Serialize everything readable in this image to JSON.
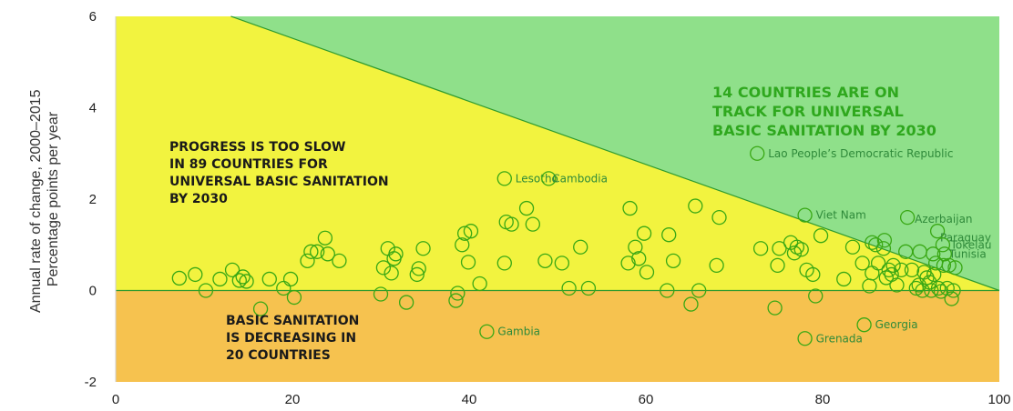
{
  "chart_data": {
    "type": "scatter",
    "xlim": [
      0,
      100
    ],
    "ylim": [
      -2,
      6
    ],
    "x_ticks": [
      "0",
      "20",
      "40",
      "60",
      "80",
      "100"
    ],
    "y_ticks": [
      "-2",
      "0",
      "2",
      "4",
      "6"
    ],
    "ylabel_lines": [
      "Annual rate of change, 2000–2015",
      "Percentage points per year"
    ],
    "colors": {
      "on_track": "#8fe08a",
      "too_slow": "#f2f33f",
      "decreasing": "#f6c24f",
      "marker": "#39a814",
      "green_text": "#2fa81e",
      "label_text": "#2f8a3a",
      "dark_text": "#1a1a1a"
    },
    "annotations": {
      "on_track": [
        "14 COUNTRIES ARE ON",
        "TRACK FOR UNIVERSAL",
        "BASIC SANITATION BY 2030"
      ],
      "too_slow": [
        "PROGRESS IS TOO SLOW",
        "IN 89 COUNTRIES FOR",
        "UNIVERSAL BASIC SANITATION",
        "BY 2030"
      ],
      "decreasing": [
        "BASIC SANITATION",
        "IS DECREASING IN",
        "20 COUNTRIES"
      ]
    },
    "labeled_points": [
      {
        "label": "Lao People’s Democratic Republic",
        "x": 72.6,
        "y": 3.0
      },
      {
        "label": "Lesotho",
        "x": 44.0,
        "y": 2.45
      },
      {
        "label": "Cambodia",
        "x": 49.0,
        "y": 2.45
      },
      {
        "label": "Viet Nam",
        "x": 78.0,
        "y": 1.65
      },
      {
        "label": "Azerbaijan",
        "x": 89.6,
        "y": 1.6
      },
      {
        "label": "Paraguay",
        "x": 93.0,
        "y": 1.3
      },
      {
        "label": "Tokelau",
        "x": 93.6,
        "y": 1.0
      },
      {
        "label": "Tunisia",
        "x": 93.8,
        "y": 0.8
      },
      {
        "label": "Gambia",
        "x": 42.0,
        "y": -0.9
      },
      {
        "label": "Georgia",
        "x": 84.7,
        "y": -0.75
      },
      {
        "label": "Grenada",
        "x": 78.0,
        "y": -1.05
      }
    ],
    "points": [
      [
        7.2,
        0.27
      ],
      [
        9.0,
        0.35
      ],
      [
        10.2,
        0.0
      ],
      [
        11.8,
        0.25
      ],
      [
        13.2,
        0.45
      ],
      [
        14.0,
        0.22
      ],
      [
        14.4,
        0.3
      ],
      [
        14.8,
        0.2
      ],
      [
        16.4,
        -0.4
      ],
      [
        17.4,
        0.25
      ],
      [
        19.0,
        0.05
      ],
      [
        19.8,
        0.25
      ],
      [
        20.2,
        -0.15
      ],
      [
        21.7,
        0.65
      ],
      [
        22.1,
        0.85
      ],
      [
        22.8,
        0.85
      ],
      [
        23.7,
        1.15
      ],
      [
        24.0,
        0.8
      ],
      [
        25.3,
        0.65
      ],
      [
        30.0,
        -0.08
      ],
      [
        30.3,
        0.5
      ],
      [
        30.8,
        0.92
      ],
      [
        31.2,
        0.38
      ],
      [
        31.5,
        0.7
      ],
      [
        31.7,
        0.8
      ],
      [
        32.9,
        -0.26
      ],
      [
        34.1,
        0.35
      ],
      [
        34.3,
        0.48
      ],
      [
        34.8,
        0.92
      ],
      [
        38.5,
        -0.22
      ],
      [
        38.7,
        -0.06
      ],
      [
        39.2,
        1.0
      ],
      [
        39.5,
        1.25
      ],
      [
        39.9,
        0.62
      ],
      [
        40.2,
        1.3
      ],
      [
        41.2,
        0.15
      ],
      [
        44.0,
        0.6
      ],
      [
        44.2,
        1.5
      ],
      [
        44.8,
        1.45
      ],
      [
        46.5,
        1.8
      ],
      [
        47.2,
        1.45
      ],
      [
        48.6,
        0.65
      ],
      [
        50.5,
        0.6
      ],
      [
        51.3,
        0.05
      ],
      [
        52.6,
        0.95
      ],
      [
        53.5,
        0.05
      ],
      [
        58.0,
        0.6
      ],
      [
        58.2,
        1.8
      ],
      [
        58.8,
        0.95
      ],
      [
        59.2,
        0.7
      ],
      [
        59.8,
        1.25
      ],
      [
        60.1,
        0.4
      ],
      [
        62.4,
        0.0
      ],
      [
        62.6,
        1.22
      ],
      [
        63.1,
        0.65
      ],
      [
        65.1,
        -0.3
      ],
      [
        65.6,
        1.85
      ],
      [
        66.0,
        0.0
      ],
      [
        68.0,
        0.55
      ],
      [
        68.3,
        1.6
      ],
      [
        73.0,
        0.92
      ],
      [
        74.6,
        -0.38
      ],
      [
        74.9,
        0.55
      ],
      [
        75.1,
        0.92
      ],
      [
        76.4,
        1.05
      ],
      [
        76.8,
        0.82
      ],
      [
        77.1,
        0.95
      ],
      [
        77.6,
        0.9
      ],
      [
        78.2,
        0.45
      ],
      [
        78.9,
        0.35
      ],
      [
        79.2,
        -0.12
      ],
      [
        79.8,
        1.2
      ],
      [
        82.4,
        0.25
      ],
      [
        83.4,
        0.95
      ],
      [
        84.5,
        0.6
      ],
      [
        85.3,
        0.1
      ],
      [
        85.6,
        0.38
      ],
      [
        86.0,
        1.0
      ],
      [
        86.3,
        0.6
      ],
      [
        86.9,
        0.92
      ],
      [
        87.2,
        0.28
      ],
      [
        87.5,
        0.45
      ],
      [
        87.8,
        0.35
      ],
      [
        88.0,
        0.55
      ],
      [
        88.4,
        0.12
      ],
      [
        88.9,
        0.45
      ],
      [
        89.4,
        0.85
      ],
      [
        90.1,
        0.45
      ],
      [
        90.6,
        0.05
      ],
      [
        90.9,
        0.12
      ],
      [
        91.3,
        0.0
      ],
      [
        91.5,
        0.4
      ],
      [
        91.8,
        0.28
      ],
      [
        92.1,
        0.18
      ],
      [
        92.3,
        0.0
      ],
      [
        92.6,
        0.35
      ],
      [
        92.8,
        0.6
      ],
      [
        93.1,
        0.05
      ],
      [
        93.4,
        -0.02
      ],
      [
        93.7,
        0.55
      ],
      [
        94.1,
        0.05
      ],
      [
        94.3,
        0.55
      ],
      [
        94.6,
        -0.18
      ],
      [
        94.8,
        0.0
      ],
      [
        95.0,
        0.5
      ],
      [
        85.6,
        1.05
      ],
      [
        87.0,
        1.1
      ],
      [
        91.0,
        0.85
      ],
      [
        92.5,
        0.8
      ]
    ]
  }
}
